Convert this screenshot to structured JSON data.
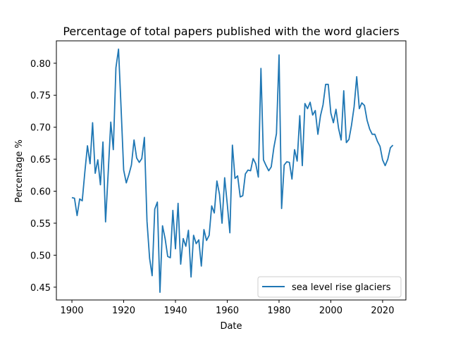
{
  "chart_data": {
    "type": "line",
    "title": "Percentage of total papers published with the word glaciers",
    "xlabel": "Date",
    "ylabel": "Percentage %",
    "xlim": [
      1894,
      2029
    ],
    "ylim": [
      0.43,
      0.835
    ],
    "xticks": [
      1900,
      1920,
      1940,
      1960,
      1980,
      2000,
      2020
    ],
    "yticks": [
      0.45,
      0.5,
      0.55,
      0.6,
      0.65,
      0.7,
      0.75,
      0.8
    ],
    "ytick_labels": [
      "0.45",
      "0.50",
      "0.55",
      "0.60",
      "0.65",
      "0.70",
      "0.75",
      "0.80"
    ],
    "grid": false,
    "legend_position": "lower-right",
    "series": [
      {
        "name": "sea level rise glaciers",
        "color": "#1f77b4",
        "x": [
          1900,
          1901,
          1902,
          1903,
          1904,
          1905,
          1906,
          1907,
          1908,
          1909,
          1910,
          1911,
          1912,
          1913,
          1914,
          1915,
          1916,
          1917,
          1918,
          1919,
          1920,
          1921,
          1922,
          1923,
          1924,
          1925,
          1926,
          1927,
          1928,
          1929,
          1930,
          1931,
          1932,
          1933,
          1934,
          1935,
          1936,
          1937,
          1938,
          1939,
          1940,
          1941,
          1942,
          1943,
          1944,
          1945,
          1946,
          1947,
          1948,
          1949,
          1950,
          1951,
          1952,
          1953,
          1954,
          1955,
          1956,
          1957,
          1958,
          1959,
          1960,
          1961,
          1962,
          1963,
          1964,
          1965,
          1966,
          1967,
          1968,
          1969,
          1970,
          1971,
          1972,
          1973,
          1974,
          1975,
          1976,
          1977,
          1978,
          1979,
          1980,
          1981,
          1982,
          1983,
          1984,
          1985,
          1986,
          1987,
          1988,
          1989,
          1990,
          1991,
          1992,
          1993,
          1994,
          1995,
          1996,
          1997,
          1998,
          1999,
          2000,
          2001,
          2002,
          2003,
          2004,
          2005,
          2006,
          2007,
          2008,
          2009,
          2010,
          2011,
          2012,
          2013,
          2014,
          2015,
          2016,
          2017,
          2018,
          2019,
          2020,
          2021,
          2022,
          2023,
          2024
        ],
        "y": [
          0.59,
          0.589,
          0.562,
          0.588,
          0.585,
          0.63,
          0.671,
          0.643,
          0.707,
          0.628,
          0.649,
          0.61,
          0.677,
          0.552,
          0.628,
          0.708,
          0.665,
          0.793,
          0.822,
          0.728,
          0.633,
          0.613,
          0.626,
          0.641,
          0.68,
          0.652,
          0.645,
          0.651,
          0.684,
          0.553,
          0.495,
          0.468,
          0.572,
          0.583,
          0.442,
          0.546,
          0.526,
          0.498,
          0.496,
          0.57,
          0.51,
          0.581,
          0.486,
          0.526,
          0.514,
          0.539,
          0.466,
          0.531,
          0.518,
          0.524,
          0.483,
          0.54,
          0.523,
          0.531,
          0.577,
          0.566,
          0.616,
          0.595,
          0.55,
          0.621,
          0.58,
          0.535,
          0.672,
          0.62,
          0.624,
          0.591,
          0.593,
          0.627,
          0.633,
          0.632,
          0.651,
          0.643,
          0.622,
          0.792,
          0.649,
          0.64,
          0.632,
          0.638,
          0.668,
          0.69,
          0.813,
          0.573,
          0.641,
          0.646,
          0.645,
          0.619,
          0.665,
          0.647,
          0.718,
          0.64,
          0.737,
          0.729,
          0.739,
          0.719,
          0.726,
          0.689,
          0.718,
          0.735,
          0.767,
          0.767,
          0.722,
          0.707,
          0.728,
          0.698,
          0.68,
          0.757,
          0.676,
          0.681,
          0.703,
          0.732,
          0.779,
          0.729,
          0.738,
          0.734,
          0.711,
          0.697,
          0.689,
          0.689,
          0.678,
          0.67,
          0.649,
          0.64,
          0.65,
          0.668,
          0.672
        ]
      }
    ]
  }
}
